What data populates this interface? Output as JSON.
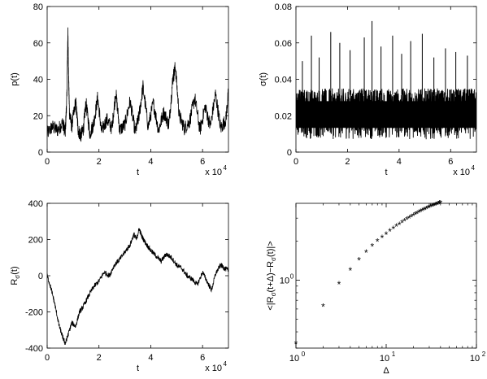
{
  "figure": {
    "background": "#ffffff",
    "ink": "#000000"
  },
  "chart_data": [
    {
      "id": "p",
      "type": "line",
      "ylabel": "p(t)",
      "xlabel": "t",
      "x_exponent_label": "x 10",
      "x_exponent": "4",
      "xlim": [
        0,
        70000
      ],
      "ylim": [
        0,
        80
      ],
      "xticks": [
        0,
        20000,
        40000,
        60000
      ],
      "xtick_labels": [
        "0",
        "2",
        "4",
        "6"
      ],
      "yticks": [
        0,
        20,
        40,
        60,
        80
      ],
      "ytick_labels": [
        "0",
        "20",
        "40",
        "60",
        "80"
      ],
      "grid": false,
      "series": [
        {
          "x": [
            0,
            2000,
            4000,
            6000,
            7000,
            7600,
            8000,
            8300,
            8600,
            9500,
            11000,
            12000,
            13000,
            14000,
            15000,
            16500,
            18000,
            19500,
            21000,
            23000,
            25000,
            26500,
            28000,
            30000,
            32000,
            34000,
            35500,
            37000,
            39000,
            41000,
            43000,
            45000,
            47000,
            48500,
            49500,
            51000,
            53000,
            55000,
            57000,
            59000,
            61000,
            63000,
            65000,
            67000,
            69000,
            70000
          ],
          "y": [
            10,
            14,
            12,
            16,
            11,
            30,
            67,
            40,
            22,
            14,
            28,
            12,
            9,
            13,
            27,
            10,
            16,
            30,
            11,
            18,
            13,
            33,
            12,
            15,
            28,
            11,
            20,
            36,
            14,
            27,
            12,
            22,
            15,
            40,
            47,
            20,
            13,
            17,
            30,
            12,
            25,
            14,
            32,
            13,
            18,
            33
          ]
        }
      ]
    },
    {
      "id": "sigma",
      "type": "line",
      "ylabel": "σ(t)",
      "xlabel": "t",
      "x_exponent_label": "x 10",
      "x_exponent": "4",
      "xlim": [
        0,
        70000
      ],
      "ylim": [
        0,
        0.08
      ],
      "xticks": [
        0,
        20000,
        40000,
        60000
      ],
      "xtick_labels": [
        "0",
        "2",
        "4",
        "6"
      ],
      "yticks": [
        0,
        0.02,
        0.04,
        0.06,
        0.08
      ],
      "ytick_labels": [
        "0",
        "0.02",
        "0.04",
        "0.06",
        "0.08"
      ],
      "grid": false,
      "series": [
        {
          "band_low": 0.007,
          "band_high": 0.035,
          "peaks_x": [
            2500,
            6000,
            9000,
            13500,
            17000,
            21000,
            26500,
            29500,
            33000,
            37500,
            41000,
            44500,
            49000,
            53500,
            58000,
            62000,
            66500
          ],
          "peaks_y": [
            0.05,
            0.064,
            0.052,
            0.066,
            0.06,
            0.056,
            0.063,
            0.072,
            0.058,
            0.064,
            0.054,
            0.061,
            0.065,
            0.052,
            0.057,
            0.055,
            0.053
          ]
        }
      ]
    },
    {
      "id": "R",
      "type": "line",
      "ylabel": "R",
      "ylabel_sub": "σ",
      "ylabel_tail": "(t)",
      "xlabel": "t",
      "x_exponent_label": "x 10",
      "x_exponent": "4",
      "xlim": [
        0,
        70000
      ],
      "ylim": [
        -400,
        400
      ],
      "xticks": [
        0,
        20000,
        40000,
        60000
      ],
      "xtick_labels": [
        "0",
        "2",
        "4",
        "6"
      ],
      "yticks": [
        -400,
        -200,
        0,
        200,
        400
      ],
      "ytick_labels": [
        "-400",
        "-200",
        "0",
        "200",
        "400"
      ],
      "grid": false,
      "series": [
        {
          "x": [
            0,
            1500,
            3000,
            4500,
            6000,
            7000,
            8000,
            9500,
            11000,
            12500,
            14000,
            16000,
            18000,
            20000,
            22000,
            24000,
            26000,
            28000,
            30000,
            32000,
            33500,
            34500,
            35500,
            36500,
            38000,
            40000,
            42000,
            44000,
            46000,
            48000,
            50000,
            52000,
            54000,
            56000,
            58000,
            60000,
            62000,
            63500,
            65000,
            67000,
            68500,
            70000
          ],
          "y": [
            0,
            -70,
            -160,
            -270,
            -340,
            -375,
            -330,
            -260,
            -280,
            -200,
            -170,
            -110,
            -60,
            -30,
            20,
            0,
            60,
            90,
            130,
            170,
            230,
            200,
            260,
            220,
            180,
            140,
            110,
            80,
            120,
            100,
            60,
            40,
            0,
            -20,
            -50,
            20,
            -40,
            -80,
            10,
            60,
            40,
            30
          ]
        }
      ]
    },
    {
      "id": "scaling",
      "type": "scatter",
      "ylabel": "<|R",
      "ylabel_sub1": "σ",
      "ylabel_mid": "(t+Δ)−R",
      "ylabel_sub2": "σ",
      "ylabel_tail": "(t)|>",
      "xlabel": "Δ",
      "xscale": "log",
      "yscale": "log",
      "xlim": [
        1,
        100
      ],
      "ylim": [
        0.3,
        3.9
      ],
      "xticks": [
        1,
        10,
        100
      ],
      "xtick_bases": [
        "10",
        "10",
        "10"
      ],
      "xtick_exps": [
        "0",
        "1",
        "2"
      ],
      "yticks": [
        1
      ],
      "ytick_bases": [
        "10"
      ],
      "ytick_exps": [
        "0"
      ],
      "marker": "*",
      "grid": false,
      "series": [
        {
          "x": [
            1,
            2,
            3,
            4,
            5,
            6,
            7,
            8,
            9,
            10,
            11,
            12,
            13,
            14,
            15,
            16,
            17,
            18,
            19,
            20,
            21,
            22,
            23,
            24,
            25,
            26,
            27,
            28,
            29,
            30,
            31,
            32,
            33,
            34,
            35,
            36,
            37,
            38,
            39,
            40
          ],
          "y": [
            0.32,
            0.62,
            0.92,
            1.18,
            1.41,
            1.62,
            1.8,
            1.96,
            2.1,
            2.23,
            2.35,
            2.46,
            2.56,
            2.65,
            2.74,
            2.82,
            2.9,
            2.97,
            3.04,
            3.1,
            3.16,
            3.22,
            3.27,
            3.32,
            3.37,
            3.42,
            3.46,
            3.5,
            3.54,
            3.58,
            3.62,
            3.65,
            3.68,
            3.71,
            3.74,
            3.77,
            3.8,
            3.83,
            3.86,
            3.88
          ]
        }
      ]
    }
  ]
}
